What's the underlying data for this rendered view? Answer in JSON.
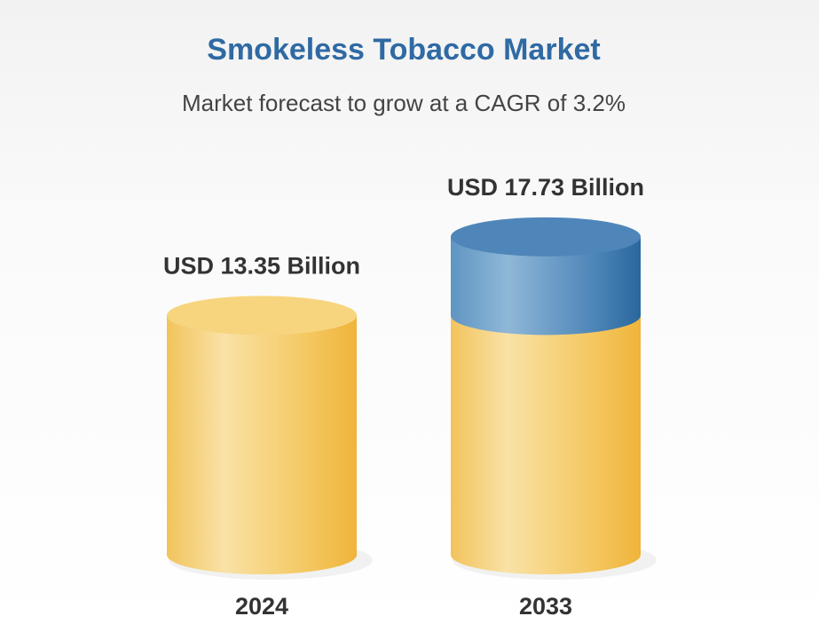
{
  "chart_data": {
    "type": "cylinder",
    "title": "Smokeless Tobacco Market",
    "subtitle": "Market forecast to grow at a CAGR of 3.2%",
    "categories": [
      "2024",
      "2033"
    ],
    "values": [
      13.35,
      17.73
    ],
    "value_labels": [
      "USD 13.35 Billion",
      "USD 17.73 Billion"
    ],
    "color": "#f2bf4c",
    "growth_color": "#3f7db2"
  }
}
